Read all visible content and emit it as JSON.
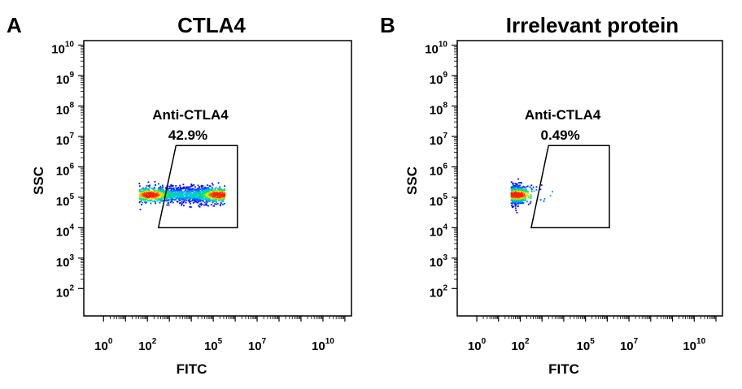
{
  "chart_data": [
    {
      "type": "scatter",
      "panel": "A",
      "title": "CTLA4",
      "xlabel": "FITC",
      "ylabel": "SSC",
      "x_scale": "log",
      "y_scale": "log",
      "x_ticks": [
        "10^0",
        "10^2",
        "10^5",
        "10^7",
        "10^10"
      ],
      "y_ticks": [
        "10^2",
        "10^3",
        "10^4",
        "10^5",
        "10^6",
        "10^7",
        "10^8",
        "10^9",
        "10^10"
      ],
      "gate": {
        "name": "Anti-CTLA4",
        "percent": "42.9%",
        "vertices_log10": [
          [
            3.3,
            6.7
          ],
          [
            6.1,
            6.7
          ],
          [
            6.1,
            4.0
          ],
          [
            2.5,
            4.0
          ]
        ]
      },
      "population": {
        "x_log10_range": [
          1.6,
          5.5
        ],
        "y_log10_center": 5.1,
        "y_log10_spread": 0.25,
        "hotspots_log10": [
          [
            2.1,
            5.1
          ],
          [
            5.2,
            5.1
          ]
        ],
        "description_colors": [
          "#0000ff",
          "#00c0ff",
          "#00ff40",
          "#ffff00",
          "#ff2000"
        ]
      }
    },
    {
      "type": "scatter",
      "panel": "B",
      "title": "Irrelevant protein",
      "xlabel": "FITC",
      "ylabel": "SSC",
      "x_scale": "log",
      "y_scale": "log",
      "x_ticks": [
        "10^0",
        "10^2",
        "10^5",
        "10^7",
        "10^10"
      ],
      "y_ticks": [
        "10^2",
        "10^3",
        "10^4",
        "10^5",
        "10^6",
        "10^7",
        "10^8",
        "10^9",
        "10^10"
      ],
      "gate": {
        "name": "Anti-CTLA4",
        "percent": "0.49%",
        "vertices_log10": [
          [
            3.3,
            6.7
          ],
          [
            6.1,
            6.7
          ],
          [
            6.1,
            4.0
          ],
          [
            2.5,
            4.0
          ]
        ]
      },
      "population": {
        "x_log10_range": [
          1.3,
          3.5
        ],
        "y_log10_center": 5.1,
        "y_log10_spread": 0.28,
        "hotspots_log10": [
          [
            1.8,
            5.1
          ]
        ],
        "description_colors": [
          "#0000ff",
          "#00c0ff",
          "#00ff40",
          "#ffff00",
          "#ff2000"
        ]
      }
    }
  ]
}
